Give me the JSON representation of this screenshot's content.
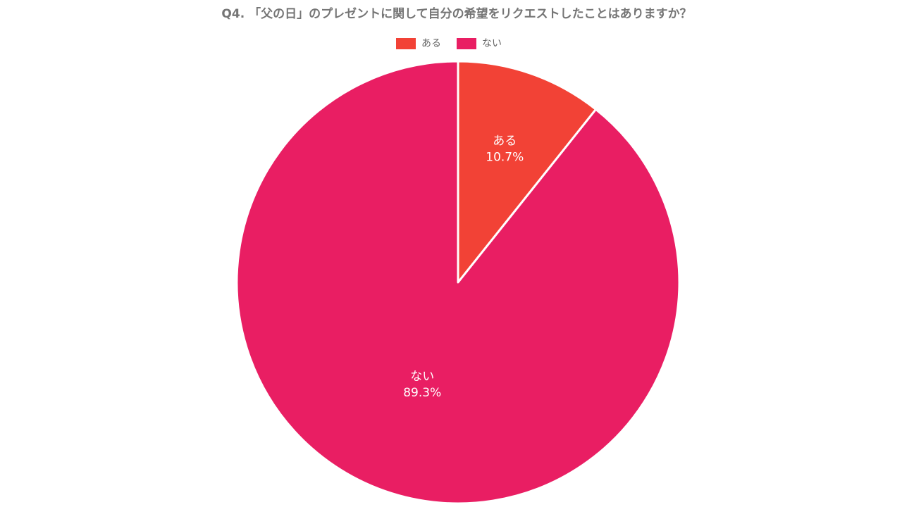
{
  "chart_data": {
    "type": "pie",
    "title": "Q4. 「父の日」のプレゼントに関して自分の希望をリクエストしたことはありますか？",
    "categories": [
      "ある",
      "ない"
    ],
    "values": [
      10.7,
      89.3
    ],
    "value_labels": [
      "10.7%",
      "89.3%"
    ],
    "colors": [
      "#f24236",
      "#e91e63"
    ],
    "legend": "top"
  }
}
